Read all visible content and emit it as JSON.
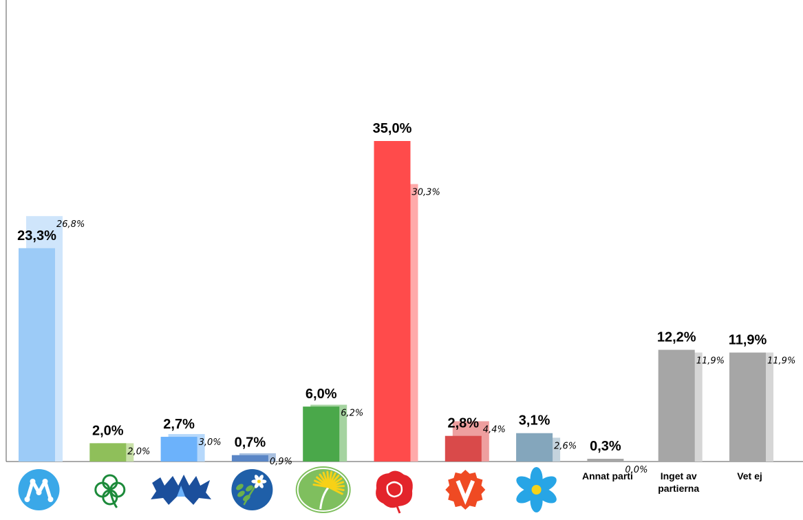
{
  "chart_data": {
    "type": "bar",
    "categories": [
      "M",
      "C",
      "L",
      "KD",
      "MP",
      "S",
      "V",
      "SD",
      "Annat parti",
      "Inget av partierna",
      "Vet ej"
    ],
    "category_labels": [
      {
        "icon": "moderaterna-logo-icon"
      },
      {
        "icon": "centerpartiet-logo-icon"
      },
      {
        "icon": "liberalerna-logo-icon"
      },
      {
        "icon": "kristdemokraterna-logo-icon"
      },
      {
        "icon": "miljopartiet-logo-icon"
      },
      {
        "icon": "socialdemokraterna-logo-icon"
      },
      {
        "icon": "vansterpartiet-logo-icon"
      },
      {
        "icon": "sverigedemokraterna-logo-icon"
      },
      {
        "lines": [
          "Annat parti"
        ]
      },
      {
        "lines": [
          "Inget av",
          "partierna"
        ]
      },
      {
        "lines": [
          "Vet ej"
        ]
      }
    ],
    "series": [
      {
        "values": [
          23.3,
          2.0,
          2.7,
          0.7,
          6.0,
          35.0,
          2.8,
          3.1,
          0.3,
          12.2,
          11.9
        ],
        "labels": [
          "23,3%",
          "2,0%",
          "2,7%",
          "0,7%",
          "6,0%",
          "35,0%",
          "2,8%",
          "3,1%",
          "0,3%",
          "12,2%",
          "11,9%"
        ],
        "colors": [
          "#9ccbf7",
          "#8fbf5a",
          "#6cb2fb",
          "#5a86c6",
          "#4aa84a",
          "#ff4b4b",
          "#d94a4a",
          "#84a6bc",
          "#a6a6a6",
          "#a6a6a6",
          "#a6a6a6"
        ]
      },
      {
        "values": [
          26.8,
          2.0,
          3.0,
          0.9,
          6.2,
          30.3,
          4.4,
          2.6,
          0.0,
          11.9,
          11.9
        ],
        "labels": [
          "26,8%",
          "2,0%",
          "3,0%",
          "0,9%",
          "6,2%",
          "30,3%",
          "4,4%",
          "2,6%",
          "0,0%",
          "11,9%",
          "11,9%"
        ],
        "colors": [
          "#cfe5fb",
          "#c8e0a8",
          "#b6d8fb",
          "#a9c0e0",
          "#a5d3a0",
          "#ffaaaa",
          "#ee9f9f",
          "#c4d3dd",
          "#d6d6d6",
          "#d6d6d6",
          "#d6d6d6"
        ]
      }
    ],
    "ylim": [
      0,
      40
    ],
    "grid": false,
    "legend": "none"
  }
}
